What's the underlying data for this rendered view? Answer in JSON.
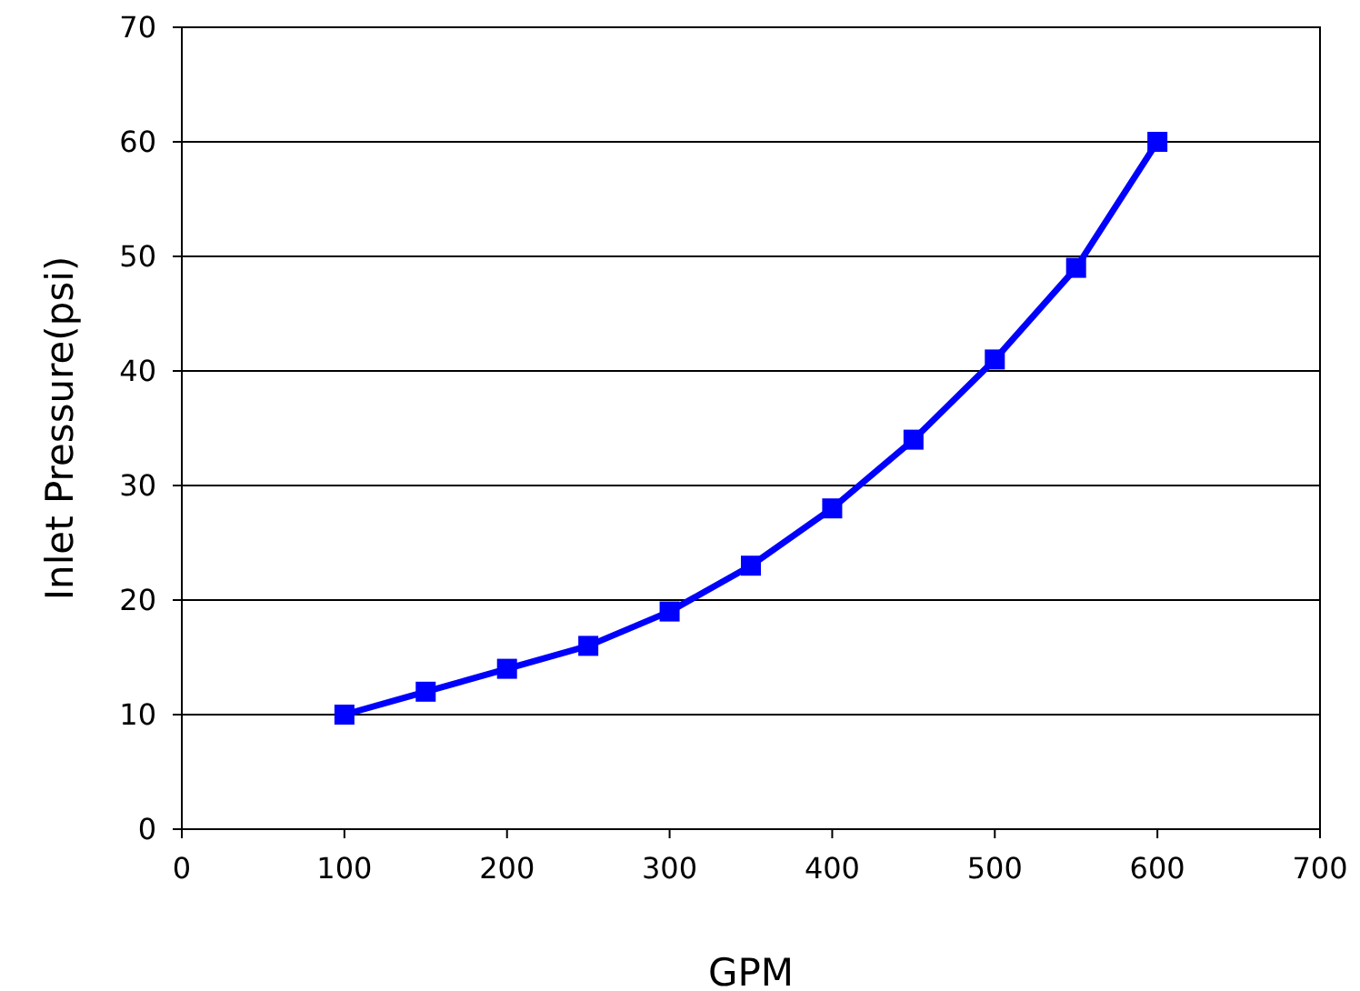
{
  "chart_data": {
    "type": "line",
    "xlabel": "GPM",
    "ylabel": "Inlet Pressure(psi)",
    "x": [
      100,
      150,
      200,
      250,
      300,
      350,
      400,
      450,
      500,
      550,
      600
    ],
    "series": [
      {
        "color": "#0000ff",
        "values": [
          10,
          12,
          14,
          16,
          19,
          23,
          28,
          34,
          41,
          49,
          60
        ]
      }
    ],
    "xlim": [
      0,
      700
    ],
    "xticks": [
      0,
      100,
      200,
      300,
      400,
      500,
      600,
      700
    ],
    "ylim": [
      0,
      70
    ],
    "yticks": [
      0,
      10,
      20,
      30,
      40,
      50,
      60,
      70
    ],
    "grid": "y",
    "marker": "square",
    "line_style": "solid"
  }
}
